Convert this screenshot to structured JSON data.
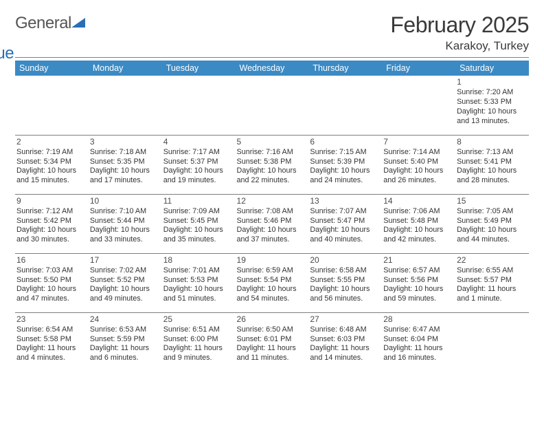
{
  "brand": {
    "word1": "General",
    "word2": "Blue"
  },
  "title": {
    "month_year": "February 2025",
    "location": "Karakoy, Turkey"
  },
  "colors": {
    "header_bg": "#3b8ac4",
    "header_fg": "#ffffff",
    "rule": "#7d7d7d",
    "text": "#333333",
    "brand_blue": "#2a6fb5",
    "brand_gray": "#555555"
  },
  "dow": [
    "Sunday",
    "Monday",
    "Tuesday",
    "Wednesday",
    "Thursday",
    "Friday",
    "Saturday"
  ],
  "weeks": [
    [
      null,
      null,
      null,
      null,
      null,
      null,
      {
        "n": "1",
        "sunrise": "7:20 AM",
        "sunset": "5:33 PM",
        "daylight": "10 hours and 13 minutes."
      }
    ],
    [
      {
        "n": "2",
        "sunrise": "7:19 AM",
        "sunset": "5:34 PM",
        "daylight": "10 hours and 15 minutes."
      },
      {
        "n": "3",
        "sunrise": "7:18 AM",
        "sunset": "5:35 PM",
        "daylight": "10 hours and 17 minutes."
      },
      {
        "n": "4",
        "sunrise": "7:17 AM",
        "sunset": "5:37 PM",
        "daylight": "10 hours and 19 minutes."
      },
      {
        "n": "5",
        "sunrise": "7:16 AM",
        "sunset": "5:38 PM",
        "daylight": "10 hours and 22 minutes."
      },
      {
        "n": "6",
        "sunrise": "7:15 AM",
        "sunset": "5:39 PM",
        "daylight": "10 hours and 24 minutes."
      },
      {
        "n": "7",
        "sunrise": "7:14 AM",
        "sunset": "5:40 PM",
        "daylight": "10 hours and 26 minutes."
      },
      {
        "n": "8",
        "sunrise": "7:13 AM",
        "sunset": "5:41 PM",
        "daylight": "10 hours and 28 minutes."
      }
    ],
    [
      {
        "n": "9",
        "sunrise": "7:12 AM",
        "sunset": "5:42 PM",
        "daylight": "10 hours and 30 minutes."
      },
      {
        "n": "10",
        "sunrise": "7:10 AM",
        "sunset": "5:44 PM",
        "daylight": "10 hours and 33 minutes."
      },
      {
        "n": "11",
        "sunrise": "7:09 AM",
        "sunset": "5:45 PM",
        "daylight": "10 hours and 35 minutes."
      },
      {
        "n": "12",
        "sunrise": "7:08 AM",
        "sunset": "5:46 PM",
        "daylight": "10 hours and 37 minutes."
      },
      {
        "n": "13",
        "sunrise": "7:07 AM",
        "sunset": "5:47 PM",
        "daylight": "10 hours and 40 minutes."
      },
      {
        "n": "14",
        "sunrise": "7:06 AM",
        "sunset": "5:48 PM",
        "daylight": "10 hours and 42 minutes."
      },
      {
        "n": "15",
        "sunrise": "7:05 AM",
        "sunset": "5:49 PM",
        "daylight": "10 hours and 44 minutes."
      }
    ],
    [
      {
        "n": "16",
        "sunrise": "7:03 AM",
        "sunset": "5:50 PM",
        "daylight": "10 hours and 47 minutes."
      },
      {
        "n": "17",
        "sunrise": "7:02 AM",
        "sunset": "5:52 PM",
        "daylight": "10 hours and 49 minutes."
      },
      {
        "n": "18",
        "sunrise": "7:01 AM",
        "sunset": "5:53 PM",
        "daylight": "10 hours and 51 minutes."
      },
      {
        "n": "19",
        "sunrise": "6:59 AM",
        "sunset": "5:54 PM",
        "daylight": "10 hours and 54 minutes."
      },
      {
        "n": "20",
        "sunrise": "6:58 AM",
        "sunset": "5:55 PM",
        "daylight": "10 hours and 56 minutes."
      },
      {
        "n": "21",
        "sunrise": "6:57 AM",
        "sunset": "5:56 PM",
        "daylight": "10 hours and 59 minutes."
      },
      {
        "n": "22",
        "sunrise": "6:55 AM",
        "sunset": "5:57 PM",
        "daylight": "11 hours and 1 minute."
      }
    ],
    [
      {
        "n": "23",
        "sunrise": "6:54 AM",
        "sunset": "5:58 PM",
        "daylight": "11 hours and 4 minutes."
      },
      {
        "n": "24",
        "sunrise": "6:53 AM",
        "sunset": "5:59 PM",
        "daylight": "11 hours and 6 minutes."
      },
      {
        "n": "25",
        "sunrise": "6:51 AM",
        "sunset": "6:00 PM",
        "daylight": "11 hours and 9 minutes."
      },
      {
        "n": "26",
        "sunrise": "6:50 AM",
        "sunset": "6:01 PM",
        "daylight": "11 hours and 11 minutes."
      },
      {
        "n": "27",
        "sunrise": "6:48 AM",
        "sunset": "6:03 PM",
        "daylight": "11 hours and 14 minutes."
      },
      {
        "n": "28",
        "sunrise": "6:47 AM",
        "sunset": "6:04 PM",
        "daylight": "11 hours and 16 minutes."
      },
      null
    ]
  ],
  "labels": {
    "sunrise": "Sunrise: ",
    "sunset": "Sunset: ",
    "daylight": "Daylight: "
  }
}
